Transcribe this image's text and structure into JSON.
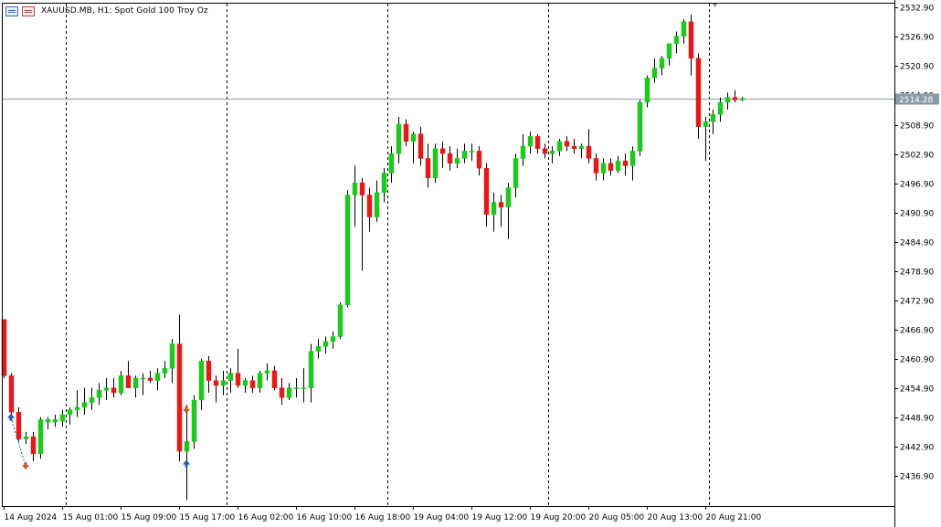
{
  "header": {
    "title": "XAUUSD.MB, H1:  Spot Gold 100 Troy Oz",
    "icons": [
      "chart-window-icon",
      "chart-type-icon"
    ]
  },
  "colors": {
    "bull": "#1ec81e",
    "bear": "#e41a1a",
    "grid": "#000000",
    "price_line": "#8a9aa8",
    "price_badge": "#8a9aa8",
    "buy_arrow": "#1e5aa8",
    "sell_arrow": "#c8551e"
  },
  "chart_data": {
    "type": "candlestick",
    "symbol": "XAUUSD.MB",
    "timeframe": "H1",
    "ylim": [
      2430.8,
      2533.7
    ],
    "y_ticks": [
      "2532.90",
      "2526.90",
      "2520.90",
      "2514.90",
      "2508.90",
      "2502.90",
      "2496.90",
      "2490.90",
      "2484.90",
      "2478.90",
      "2472.90",
      "2466.90",
      "2460.90",
      "2454.90",
      "2448.90",
      "2442.90",
      "2436.90"
    ],
    "current_price": "2514.28",
    "x_ticks": [
      {
        "label": "14 Aug 2024",
        "bar": 0
      },
      {
        "label": "15 Aug 01:00",
        "bar": 8
      },
      {
        "label": "15 Aug 09:00",
        "bar": 16
      },
      {
        "label": "15 Aug 17:00",
        "bar": 24
      },
      {
        "label": "16 Aug 02:00",
        "bar": 32
      },
      {
        "label": "16 Aug 10:00",
        "bar": 40
      },
      {
        "label": "16 Aug 18:00",
        "bar": 48
      },
      {
        "label": "19 Aug 04:00",
        "bar": 56
      },
      {
        "label": "19 Aug 12:00",
        "bar": 64
      },
      {
        "label": "19 Aug 20:00",
        "bar": 72
      },
      {
        "label": "20 Aug 05:00",
        "bar": 80
      },
      {
        "label": "20 Aug 13:00",
        "bar": 88
      },
      {
        "label": "20 Aug 21:00",
        "bar": 96
      }
    ],
    "period_separators": [
      8,
      30,
      52,
      74,
      96
    ],
    "grid": false,
    "candles": [
      [
        2469.0,
        2469.0,
        2457.0,
        2457.5
      ],
      [
        2457.5,
        2458.0,
        2449.0,
        2450.0
      ],
      [
        2450.0,
        2451.0,
        2444.0,
        2444.5
      ],
      [
        2444.5,
        2446.0,
        2443.5,
        2445.0
      ],
      [
        2445.0,
        2446.0,
        2440.0,
        2441.5
      ],
      [
        2441.5,
        2449.0,
        2440.5,
        2448.5
      ],
      [
        2448.0,
        2449.0,
        2446.5,
        2448.5
      ],
      [
        2448.0,
        2449.5,
        2447.0,
        2448.5
      ],
      [
        2448.2,
        2450.5,
        2447.0,
        2449.5
      ],
      [
        2449.5,
        2451.0,
        2447.5,
        2450.5
      ],
      [
        2450.5,
        2454.5,
        2449.0,
        2451.0
      ],
      [
        2451.0,
        2455.0,
        2449.5,
        2452.0
      ],
      [
        2452.0,
        2455.0,
        2450.5,
        2453.0
      ],
      [
        2453.0,
        2456.0,
        2451.5,
        2454.5
      ],
      [
        2454.5,
        2457.0,
        2452.5,
        2455.0
      ],
      [
        2455.0,
        2457.0,
        2453.0,
        2454.0
      ],
      [
        2454.0,
        2458.5,
        2453.5,
        2457.5
      ],
      [
        2457.5,
        2460.5,
        2456.0,
        2455.0
      ],
      [
        2455.0,
        2457.5,
        2453.0,
        2457.0
      ],
      [
        2457.0,
        2458.0,
        2453.5,
        2457.0
      ],
      [
        2457.0,
        2458.5,
        2456.0,
        2456.5
      ],
      [
        2456.5,
        2459.0,
        2454.5,
        2458.0
      ],
      [
        2458.0,
        2460.5,
        2457.0,
        2459.0
      ],
      [
        2459.0,
        2465.0,
        2456.0,
        2464.0
      ],
      [
        2464.0,
        2470.0,
        2440.0,
        2442.0
      ],
      [
        2442.0,
        2451.5,
        2432.0,
        2444.0
      ],
      [
        2444.0,
        2453.5,
        2442.5,
        2452.5
      ],
      [
        2452.5,
        2461.0,
        2450.5,
        2460.5
      ],
      [
        2460.5,
        2461.5,
        2454.0,
        2456.5
      ],
      [
        2456.5,
        2457.5,
        2452.0,
        2455.5
      ],
      [
        2455.5,
        2458.5,
        2453.5,
        2456.5
      ],
      [
        2456.5,
        2459.0,
        2454.0,
        2458.0
      ],
      [
        2458.0,
        2463.0,
        2455.0,
        2455.5
      ],
      [
        2455.5,
        2457.0,
        2454.0,
        2456.5
      ],
      [
        2456.5,
        2457.5,
        2454.0,
        2455.0
      ],
      [
        2455.0,
        2458.5,
        2454.0,
        2458.0
      ],
      [
        2458.0,
        2460.0,
        2456.5,
        2458.5
      ],
      [
        2458.5,
        2459.5,
        2454.5,
        2455.0
      ],
      [
        2455.0,
        2457.0,
        2451.5,
        2453.0
      ],
      [
        2453.0,
        2456.0,
        2452.5,
        2455.0
      ],
      [
        2455.0,
        2457.0,
        2453.0,
        2455.0
      ],
      [
        2455.0,
        2459.0,
        2452.0,
        2455.0
      ],
      [
        2455.0,
        2464.0,
        2452.0,
        2462.5
      ],
      [
        2462.5,
        2465.0,
        2461.0,
        2463.5
      ],
      [
        2463.5,
        2465.5,
        2462.0,
        2464.5
      ],
      [
        2464.5,
        2466.5,
        2463.0,
        2465.5
      ],
      [
        2465.5,
        2472.5,
        2465.0,
        2472.0
      ],
      [
        2472.0,
        2495.5,
        2471.5,
        2494.5
      ],
      [
        2494.5,
        2500.5,
        2488.0,
        2497.0
      ],
      [
        2497.0,
        2498.0,
        2479.0,
        2494.5
      ],
      [
        2494.5,
        2496.0,
        2487.0,
        2490.0
      ],
      [
        2490.0,
        2497.5,
        2489.0,
        2495.0
      ],
      [
        2495.0,
        2500.0,
        2493.0,
        2499.0
      ],
      [
        2499.0,
        2504.5,
        2497.0,
        2503.0
      ],
      [
        2503.0,
        2510.5,
        2501.0,
        2509.0
      ],
      [
        2509.0,
        2510.0,
        2504.5,
        2505.5
      ],
      [
        2505.5,
        2507.5,
        2501.0,
        2507.0
      ],
      [
        2507.0,
        2508.5,
        2500.5,
        2502.0
      ],
      [
        2502.0,
        2505.0,
        2496.0,
        2498.0
      ],
      [
        2498.0,
        2505.0,
        2497.0,
        2504.0
      ],
      [
        2504.0,
        2505.5,
        2500.0,
        2503.0
      ],
      [
        2503.0,
        2504.5,
        2499.5,
        2501.0
      ],
      [
        2501.0,
        2504.0,
        2500.0,
        2502.0
      ],
      [
        2502.0,
        2505.0,
        2501.0,
        2503.5
      ],
      [
        2503.5,
        2505.0,
        2501.5,
        2503.5
      ],
      [
        2503.5,
        2504.5,
        2498.5,
        2500.0
      ],
      [
        2500.0,
        2501.0,
        2488.0,
        2490.5
      ],
      [
        2490.5,
        2495.0,
        2487.0,
        2493.0
      ],
      [
        2493.0,
        2494.5,
        2488.0,
        2492.0
      ],
      [
        2492.0,
        2497.0,
        2485.5,
        2496.0
      ],
      [
        2496.0,
        2503.0,
        2494.0,
        2502.0
      ],
      [
        2502.0,
        2507.0,
        2500.5,
        2504.5
      ],
      [
        2504.5,
        2507.5,
        2503.0,
        2506.5
      ],
      [
        2506.5,
        2507.0,
        2503.0,
        2504.0
      ],
      [
        2504.0,
        2505.0,
        2502.0,
        2503.0
      ],
      [
        2503.0,
        2504.5,
        2501.0,
        2503.5
      ],
      [
        2503.5,
        2506.0,
        2502.5,
        2505.5
      ],
      [
        2505.5,
        2506.5,
        2503.5,
        2504.5
      ],
      [
        2504.5,
        2506.0,
        2503.0,
        2504.0
      ],
      [
        2504.0,
        2505.0,
        2502.0,
        2504.5
      ],
      [
        2504.5,
        2508.0,
        2501.0,
        2502.0
      ],
      [
        2502.0,
        2503.0,
        2497.5,
        2499.0
      ],
      [
        2499.0,
        2502.0,
        2497.5,
        2501.0
      ],
      [
        2501.0,
        2502.0,
        2498.5,
        2499.5
      ],
      [
        2499.5,
        2502.5,
        2499.0,
        2501.5
      ],
      [
        2501.5,
        2503.0,
        2498.5,
        2500.5
      ],
      [
        2500.5,
        2504.5,
        2497.5,
        2503.5
      ],
      [
        2503.5,
        2514.0,
        2502.5,
        2513.5
      ],
      [
        2513.5,
        2519.0,
        2512.5,
        2518.5
      ],
      [
        2518.5,
        2522.5,
        2517.5,
        2520.5
      ],
      [
        2520.5,
        2523.0,
        2519.0,
        2522.5
      ],
      [
        2522.5,
        2525.5,
        2521.0,
        2525.5
      ],
      [
        2525.5,
        2528.0,
        2523.5,
        2527.0
      ],
      [
        2527.0,
        2530.5,
        2525.5,
        2530.0
      ],
      [
        2530.0,
        2531.5,
        2519.0,
        2522.5
      ],
      [
        2522.5,
        2523.5,
        2506.0,
        2508.5
      ],
      [
        2508.5,
        2510.5,
        2501.5,
        2509.5
      ],
      [
        2509.5,
        2512.0,
        2507.0,
        2511.0
      ],
      [
        2511.0,
        2514.5,
        2509.5,
        2513.5
      ],
      [
        2513.5,
        2515.5,
        2512.0,
        2514.5
      ],
      [
        2514.5,
        2516.0,
        2513.5,
        2514.0
      ],
      [
        2514.0,
        2514.6,
        2513.7,
        2514.3
      ]
    ],
    "trade_markers": [
      {
        "type": "buy",
        "bar": 1,
        "price": 2449.0
      },
      {
        "type": "sell",
        "bar": 3,
        "price": 2439.0
      },
      {
        "type": "sell",
        "bar": 25,
        "price": 2450.5
      },
      {
        "type": "buy",
        "bar": 25,
        "price": 2439.5
      }
    ],
    "title": "",
    "xlabel": "",
    "ylabel": ""
  }
}
